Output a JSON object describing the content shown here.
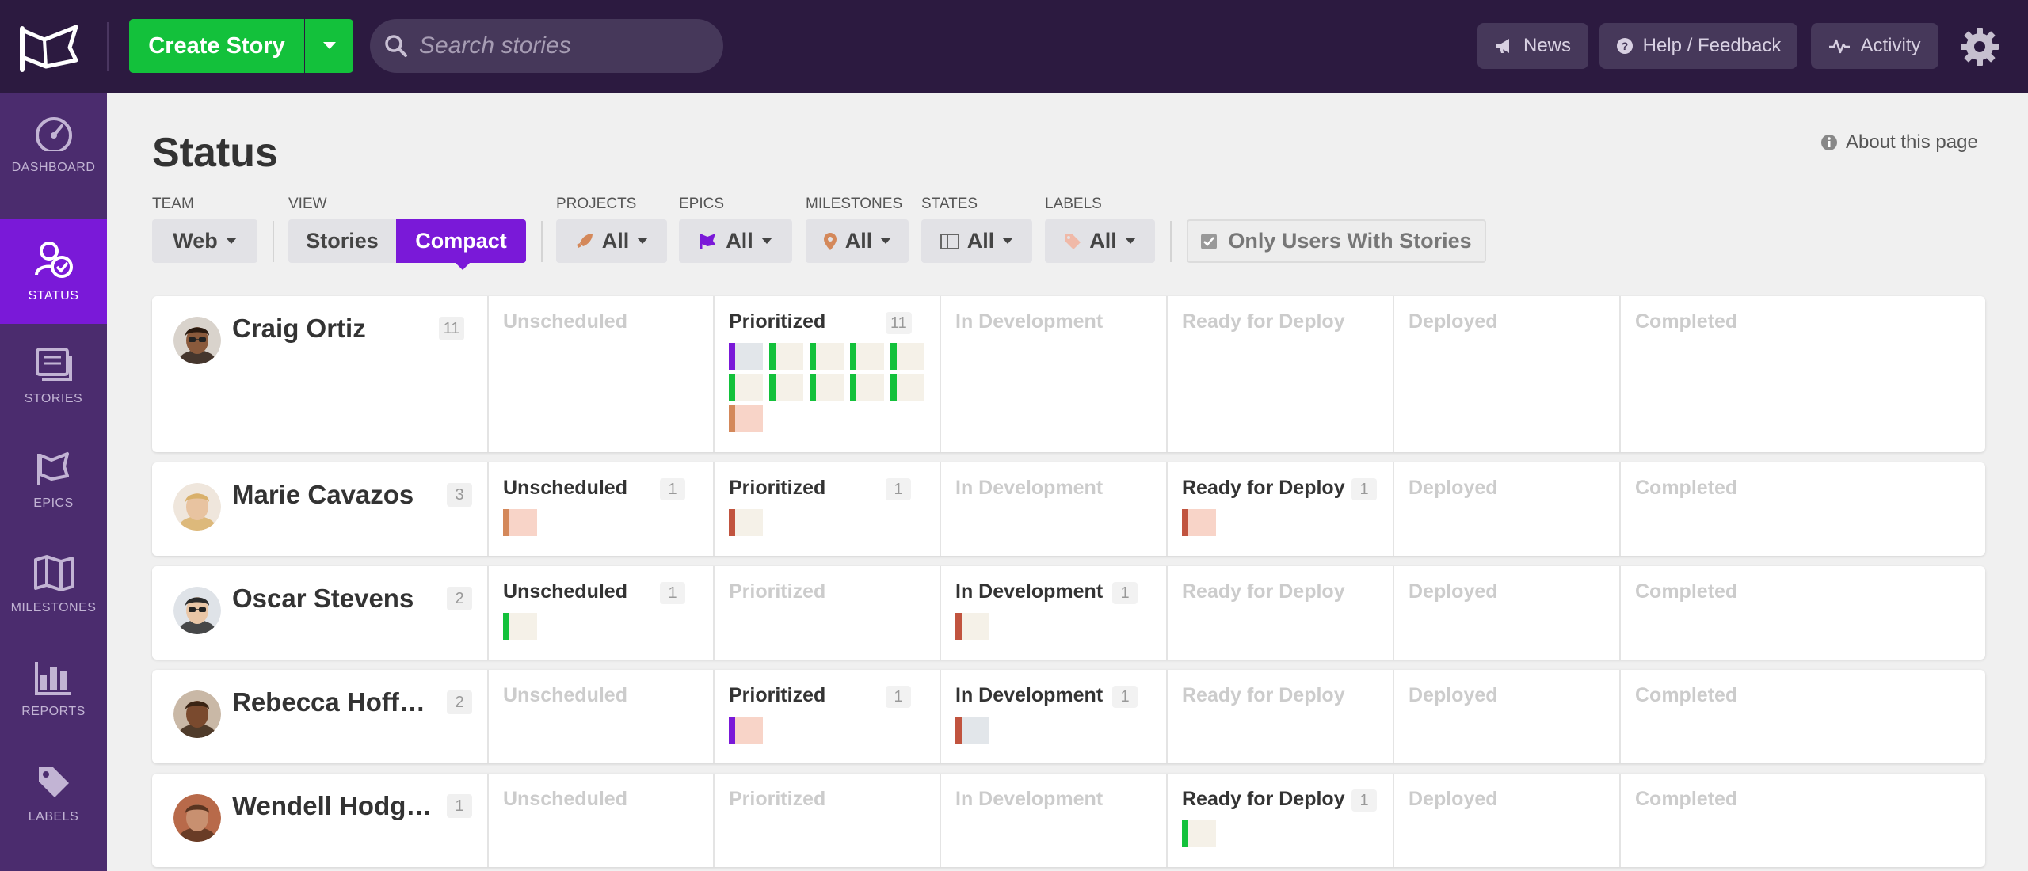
{
  "topbar": {
    "create_label": "Create Story",
    "search_placeholder": "Search stories",
    "news_label": "News",
    "help_label": "Help / Feedback",
    "activity_label": "Activity"
  },
  "sidebar": {
    "items": [
      {
        "label": "DASHBOARD",
        "icon": "dashboard-icon"
      },
      {
        "label": "STATUS",
        "icon": "status-icon",
        "active": true
      },
      {
        "label": "STORIES",
        "icon": "stories-icon"
      },
      {
        "label": "EPICS",
        "icon": "epics-icon"
      },
      {
        "label": "MILESTONES",
        "icon": "milestones-icon"
      },
      {
        "label": "REPORTS",
        "icon": "reports-icon"
      },
      {
        "label": "LABELS",
        "icon": "labels-icon"
      }
    ]
  },
  "page": {
    "title": "Status",
    "about_label": "About this page"
  },
  "filters": {
    "team_label": "TEAM",
    "team_value": "Web",
    "view_label": "VIEW",
    "view_stories": "Stories",
    "view_compact": "Compact",
    "projects_label": "PROJECTS",
    "projects_value": "All",
    "epics_label": "EPICS",
    "epics_value": "All",
    "milestones_label": "MILESTONES",
    "milestones_value": "All",
    "states_label": "STATES",
    "states_value": "All",
    "labels_label": "LABELS",
    "labels_value": "All",
    "only_users_label": "Only Users With Stories"
  },
  "columns": [
    "Unscheduled",
    "Prioritized",
    "In Development",
    "Ready for Deploy",
    "Deployed",
    "Completed"
  ],
  "colors": {
    "accent": "#7a19d8",
    "green": "#13c13b",
    "topbar": "#2c1a40",
    "sidebar": "#4b2c6e",
    "feature": "#13c13b",
    "bug": "#c1543f",
    "chore": "#d4885a",
    "epic": "#7a19d8"
  },
  "users": [
    {
      "name": "Craig Ortiz",
      "count": "11",
      "columns": [
        {
          "count": "",
          "stories": []
        },
        {
          "count": "11",
          "stories": [
            "feature",
            "feature",
            "feature",
            "feature",
            "feature",
            "feature",
            "feature",
            "feature",
            "feature",
            "feature",
            "chore"
          ]
        },
        {
          "count": "",
          "stories": []
        },
        {
          "count": "",
          "stories": []
        },
        {
          "count": "",
          "stories": []
        },
        {
          "count": "",
          "stories": []
        }
      ]
    },
    {
      "name": "Marie Cavazos",
      "count": "3",
      "columns": [
        {
          "count": "1",
          "stories": [
            "chore"
          ]
        },
        {
          "count": "1",
          "stories": [
            "bug"
          ]
        },
        {
          "count": "",
          "stories": []
        },
        {
          "count": "1",
          "stories": [
            "bug"
          ]
        },
        {
          "count": "",
          "stories": []
        },
        {
          "count": "",
          "stories": []
        }
      ]
    },
    {
      "name": "Oscar Stevens",
      "count": "2",
      "columns": [
        {
          "count": "1",
          "stories": [
            "feature"
          ]
        },
        {
          "count": "",
          "stories": []
        },
        {
          "count": "1",
          "stories": [
            "bug"
          ]
        },
        {
          "count": "",
          "stories": []
        },
        {
          "count": "",
          "stories": []
        },
        {
          "count": "",
          "stories": []
        }
      ]
    },
    {
      "name": "Rebecca Hoffman",
      "count": "2",
      "columns": [
        {
          "count": "",
          "stories": []
        },
        {
          "count": "1",
          "stories": [
            "epic"
          ]
        },
        {
          "count": "1",
          "stories": [
            "bug"
          ]
        },
        {
          "count": "",
          "stories": []
        },
        {
          "count": "",
          "stories": []
        },
        {
          "count": "",
          "stories": []
        }
      ]
    },
    {
      "name": "Wendell Hodgem...",
      "count": "1",
      "columns": [
        {
          "count": "",
          "stories": []
        },
        {
          "count": "",
          "stories": []
        },
        {
          "count": "",
          "stories": []
        },
        {
          "count": "1",
          "stories": [
            "feature"
          ]
        },
        {
          "count": "",
          "stories": []
        },
        {
          "count": "",
          "stories": []
        }
      ]
    }
  ]
}
